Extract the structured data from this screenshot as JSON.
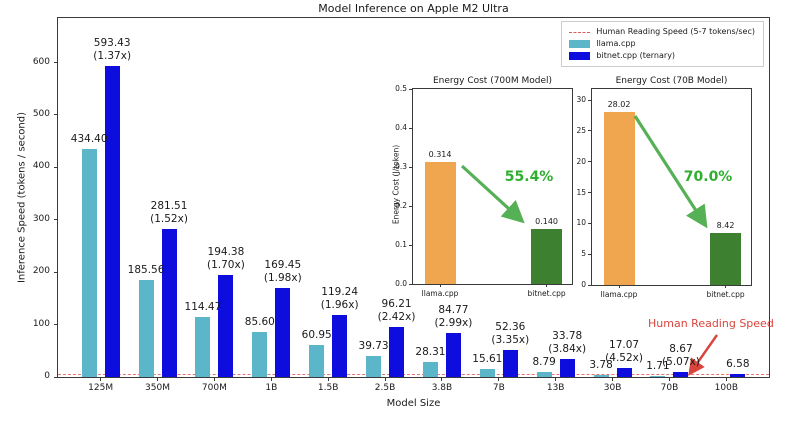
{
  "figure": {
    "title": "Model Inference on Apple M2 Ultra"
  },
  "legend": {
    "items": [
      {
        "label": "Human Reading Speed (5-7 tokens/sec)",
        "type": "dashed-line",
        "color": "#e15b5b"
      },
      {
        "label": "llama.cpp",
        "type": "swatch",
        "color": "#5cb6ca"
      },
      {
        "label": "bitnet.cpp (ternary)",
        "type": "swatch",
        "color": "#0d0ddd"
      }
    ]
  },
  "annotation": {
    "text": "Human Reading Speed",
    "color": "#d9453c"
  },
  "chart_data": [
    {
      "type": "bar",
      "title": "Model Inference on Apple M2 Ultra",
      "xlabel": "Model Size",
      "ylabel": "Inference Speed (tokens / second)",
      "categories": [
        "125M",
        "350M",
        "700M",
        "1B",
        "1.5B",
        "2.5B",
        "3.8B",
        "7B",
        "13B",
        "30B",
        "70B",
        "100B"
      ],
      "series": [
        {
          "name": "llama.cpp",
          "color": "#5cb6ca",
          "values": [
            434.4,
            185.56,
            114.47,
            85.6,
            60.95,
            39.73,
            28.31,
            15.61,
            8.79,
            3.78,
            1.71,
            null
          ],
          "labels": [
            "434.40",
            "185.56",
            "114.47",
            "85.60",
            "60.95",
            "39.73",
            "28.31",
            "15.61",
            "8.79",
            "3.78",
            "1.71",
            null
          ]
        },
        {
          "name": "bitnet.cpp (ternary)",
          "color": "#0d0ddd",
          "values": [
            593.43,
            281.51,
            194.38,
            169.45,
            119.24,
            96.21,
            84.77,
            52.36,
            33.78,
            17.07,
            8.67,
            6.58
          ],
          "labels": [
            "593.43",
            "281.51",
            "194.38",
            "169.45",
            "119.24",
            "96.21",
            "84.77",
            "52.36",
            "33.78",
            "17.07",
            "8.67",
            "6.58"
          ],
          "multipliers": [
            "(1.37x)",
            "(1.52x)",
            "(1.70x)",
            "(1.98x)",
            "(1.96x)",
            "(2.42x)",
            "(2.99x)",
            "(3.35x)",
            "(3.84x)",
            "(4.52x)",
            "(5.07x)",
            null
          ]
        }
      ],
      "yticks": [
        0,
        100,
        200,
        300,
        400,
        500,
        600
      ],
      "ylim": [
        0,
        685
      ],
      "grid": false,
      "legend_position": "upper right",
      "reference_line": {
        "value": 6,
        "label": "Human Reading Speed (5-7 tokens/sec)",
        "color": "#e15b5b",
        "style": "dashed"
      }
    },
    {
      "type": "bar",
      "title": "Energy Cost (700M Model)",
      "ylabel": "Energy Cost (J/token)",
      "categories": [
        "llama.cpp",
        "bitnet.cpp"
      ],
      "values": [
        0.314,
        0.14
      ],
      "labels": [
        "0.314",
        "0.140"
      ],
      "colors": [
        "#f0a64f",
        "#3d8030"
      ],
      "yticks": [
        0,
        0.1,
        0.2,
        0.3,
        0.4,
        0.5
      ],
      "ytick_labels": [
        "0.0",
        "0.1",
        "0.2",
        "0.3",
        "0.4",
        "0.5"
      ],
      "ylim": [
        0,
        0.5
      ],
      "reduction": "55.4%"
    },
    {
      "type": "bar",
      "title": "Energy Cost (70B Model)",
      "ylabel": "",
      "categories": [
        "llama.cpp",
        "bitnet.cpp"
      ],
      "values": [
        28.02,
        8.42
      ],
      "labels": [
        "28.02",
        "8.42"
      ],
      "colors": [
        "#f0a64f",
        "#3d8030"
      ],
      "yticks": [
        0,
        5,
        10,
        15,
        20,
        25,
        30
      ],
      "ytick_labels": [
        "0",
        "5",
        "10",
        "15",
        "20",
        "25",
        "30"
      ],
      "ylim": [
        0,
        31.8
      ],
      "reduction": "70.0%"
    }
  ]
}
